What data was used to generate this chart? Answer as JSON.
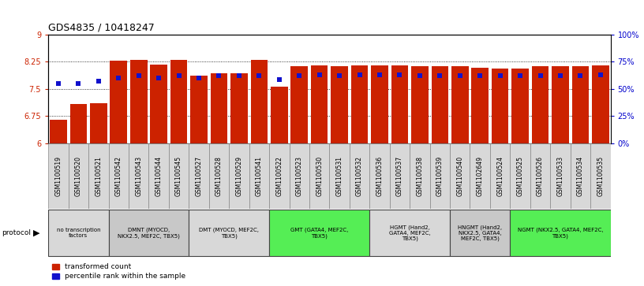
{
  "title": "GDS4835 / 10418247",
  "samples": [
    "GSM1100519",
    "GSM1100520",
    "GSM1100521",
    "GSM1100542",
    "GSM1100543",
    "GSM1100544",
    "GSM1100545",
    "GSM1100527",
    "GSM1100528",
    "GSM1100529",
    "GSM1100541",
    "GSM1100522",
    "GSM1100523",
    "GSM1100530",
    "GSM1100531",
    "GSM1100532",
    "GSM1100536",
    "GSM1100537",
    "GSM1100538",
    "GSM1100539",
    "GSM1100540",
    "GSM1102649",
    "GSM1100524",
    "GSM1100525",
    "GSM1100526",
    "GSM1100533",
    "GSM1100534",
    "GSM1100535"
  ],
  "bar_values": [
    6.65,
    7.08,
    7.1,
    8.28,
    8.3,
    8.17,
    8.3,
    7.87,
    7.93,
    7.93,
    8.3,
    7.55,
    8.12,
    8.15,
    8.12,
    8.15,
    8.15,
    8.15,
    8.12,
    8.12,
    8.12,
    8.08,
    8.05,
    8.05,
    8.12,
    8.12,
    8.12,
    8.15
  ],
  "dot_values_pct": [
    55,
    55,
    57,
    60,
    62,
    60,
    62,
    60,
    62,
    62,
    62,
    58,
    62,
    63,
    62,
    63,
    63,
    63,
    62,
    62,
    62,
    62,
    62,
    62,
    62,
    62,
    62,
    63
  ],
  "ylim_left": [
    6,
    9
  ],
  "ylim_right": [
    0,
    100
  ],
  "yticks_left": [
    6,
    6.75,
    7.5,
    8.25,
    9
  ],
  "yticks_right": [
    0,
    25,
    50,
    75,
    100
  ],
  "ytick_labels_right": [
    "0%",
    "25%",
    "50%",
    "75%",
    "100%"
  ],
  "bar_color": "#cc2200",
  "dot_color": "#1111cc",
  "background_color": "#ffffff",
  "groups": [
    {
      "label": "no transcription\nfactors",
      "start": 0,
      "end": 3,
      "color": "#d8d8d8"
    },
    {
      "label": "DMNT (MYOCD,\nNKX2.5, MEF2C, TBX5)",
      "start": 3,
      "end": 7,
      "color": "#c8c8c8"
    },
    {
      "label": "DMT (MYOCD, MEF2C,\nTBX5)",
      "start": 7,
      "end": 11,
      "color": "#d8d8d8"
    },
    {
      "label": "GMT (GATA4, MEF2C,\nTBX5)",
      "start": 11,
      "end": 16,
      "color": "#55ee55"
    },
    {
      "label": "HGMT (Hand2,\nGATA4, MEF2C,\nTBX5)",
      "start": 16,
      "end": 20,
      "color": "#d8d8d8"
    },
    {
      "label": "HNGMT (Hand2,\nNKX2.5, GATA4,\nMEF2C, TBX5)",
      "start": 20,
      "end": 23,
      "color": "#c8c8c8"
    },
    {
      "label": "NGMT (NKX2.5, GATA4, MEF2C,\nTBX5)",
      "start": 23,
      "end": 28,
      "color": "#55ee55"
    }
  ]
}
